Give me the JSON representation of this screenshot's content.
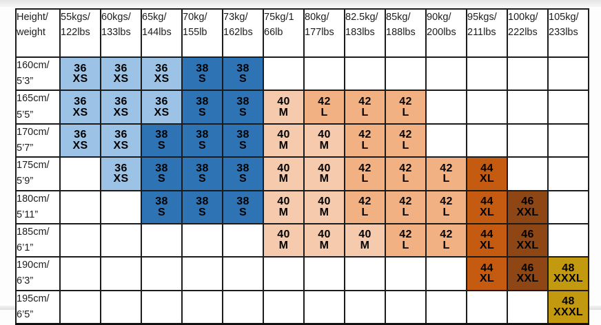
{
  "colors": {
    "xs": "#9CC2E5",
    "s": "#2E74B5",
    "m": "#F6CBAD",
    "l": "#F2B183",
    "xl": "#C55A11",
    "xxl": "#8E4615",
    "xxxl": "#C3990F",
    "grid_line": "#1b1b1b",
    "cell_text": "#000000"
  },
  "table": {
    "header": [
      {
        "line1": "Height/",
        "line2": "weight"
      },
      {
        "line1": "55kgs/",
        "line2": "122lbs"
      },
      {
        "line1": "60kgs/",
        "line2": "133lbs"
      },
      {
        "line1": "65kg/",
        "line2": "144lbs"
      },
      {
        "line1": "70kg/",
        "line2": "155lb"
      },
      {
        "line1": "73kg/",
        "line2": "162lbs"
      },
      {
        "line1": "75kg/1",
        "line2": "66lb"
      },
      {
        "line1": "80kg/",
        "line2": "177lbs"
      },
      {
        "line1": "82.5kg/",
        "line2": "183lbs"
      },
      {
        "line1": "85kg/",
        "line2": "188lbs"
      },
      {
        "line1": "90kg/",
        "line2": "200lbs"
      },
      {
        "line1": "95kgs/",
        "line2": "211lbs"
      },
      {
        "line1": "100kg/",
        "line2": "222lbs"
      },
      {
        "line1": "105kg/",
        "line2": "233lbs"
      }
    ],
    "rows": [
      {
        "label1": "160cm/",
        "label2": "5’3”",
        "cells": [
          {
            "num": "36",
            "code": "XS",
            "tone": "xs"
          },
          {
            "num": "36",
            "code": "XS",
            "tone": "xs"
          },
          {
            "num": "36",
            "code": "XS",
            "tone": "xs"
          },
          {
            "num": "38",
            "code": "S",
            "tone": "s"
          },
          {
            "num": "38",
            "code": "S",
            "tone": "s"
          },
          null,
          null,
          null,
          null,
          null,
          null,
          null,
          null
        ]
      },
      {
        "label1": "165cm/",
        "label2": "5’5”",
        "cells": [
          {
            "num": "36",
            "code": "XS",
            "tone": "xs"
          },
          {
            "num": "36",
            "code": "XS",
            "tone": "xs"
          },
          {
            "num": "36",
            "code": "XS",
            "tone": "xs"
          },
          {
            "num": "38",
            "code": "S",
            "tone": "s"
          },
          {
            "num": "38",
            "code": "S",
            "tone": "s"
          },
          {
            "num": "40",
            "code": "M",
            "tone": "m"
          },
          {
            "num": "42",
            "code": "L",
            "tone": "l"
          },
          {
            "num": "42",
            "code": "L",
            "tone": "l"
          },
          {
            "num": "42",
            "code": "L",
            "tone": "l"
          },
          null,
          null,
          null,
          null
        ]
      },
      {
        "label1": "170cm/",
        "label2": "5’7”",
        "cells": [
          {
            "num": "36",
            "code": "XS",
            "tone": "xs"
          },
          {
            "num": "36",
            "code": "XS",
            "tone": "xs"
          },
          {
            "num": "38",
            "code": "S",
            "tone": "s"
          },
          {
            "num": "38",
            "code": "S",
            "tone": "s"
          },
          {
            "num": "38",
            "code": "S",
            "tone": "s"
          },
          {
            "num": "40",
            "code": "M",
            "tone": "m"
          },
          {
            "num": "40",
            "code": "M",
            "tone": "m"
          },
          {
            "num": "42",
            "code": "L",
            "tone": "l"
          },
          {
            "num": "42",
            "code": "L",
            "tone": "l"
          },
          null,
          null,
          null,
          null
        ]
      },
      {
        "label1": "175cm/",
        "label2": "5’9”",
        "cells": [
          null,
          {
            "num": "36",
            "code": "XS",
            "tone": "xs"
          },
          {
            "num": "38",
            "code": "S",
            "tone": "s"
          },
          {
            "num": "38",
            "code": "S",
            "tone": "s"
          },
          {
            "num": "38",
            "code": "S",
            "tone": "s"
          },
          {
            "num": "40",
            "code": "M",
            "tone": "m"
          },
          {
            "num": "40",
            "code": "M",
            "tone": "m"
          },
          {
            "num": "42",
            "code": "L",
            "tone": "l"
          },
          {
            "num": "42",
            "code": "L",
            "tone": "l"
          },
          {
            "num": "42",
            "code": "L",
            "tone": "l"
          },
          {
            "num": "44",
            "code": "XL",
            "tone": "xl"
          },
          null,
          null
        ]
      },
      {
        "label1": "180cm/",
        "label2": "5’11”",
        "cells": [
          null,
          null,
          {
            "num": "38",
            "code": "S",
            "tone": "s"
          },
          {
            "num": "38",
            "code": "S",
            "tone": "s"
          },
          {
            "num": "38",
            "code": "S",
            "tone": "s"
          },
          {
            "num": "40",
            "code": "M",
            "tone": "m"
          },
          {
            "num": "40",
            "code": "M",
            "tone": "m"
          },
          {
            "num": "42",
            "code": "L",
            "tone": "l"
          },
          {
            "num": "42",
            "code": "L",
            "tone": "l"
          },
          {
            "num": "42",
            "code": "L",
            "tone": "l"
          },
          {
            "num": "44",
            "code": "XL",
            "tone": "xl"
          },
          {
            "num": "46",
            "code": "XXL",
            "tone": "xxl"
          },
          null
        ]
      },
      {
        "label1": "185cm/",
        "label2": "6’1”",
        "cells": [
          null,
          null,
          null,
          null,
          null,
          {
            "num": "40",
            "code": "M",
            "tone": "m"
          },
          {
            "num": "40",
            "code": "M",
            "tone": "m"
          },
          {
            "num": "40",
            "code": "M",
            "tone": "m"
          },
          {
            "num": "42",
            "code": "L",
            "tone": "l"
          },
          {
            "num": "42",
            "code": "L",
            "tone": "l"
          },
          {
            "num": "44",
            "code": "XL",
            "tone": "xl"
          },
          {
            "num": "46",
            "code": "XXL",
            "tone": "xxl"
          },
          null
        ]
      },
      {
        "label1": "190cm/",
        "label2": "6’3”",
        "cells": [
          null,
          null,
          null,
          null,
          null,
          null,
          null,
          null,
          null,
          null,
          {
            "num": "44",
            "code": "XL",
            "tone": "xl"
          },
          {
            "num": "46",
            "code": "XXL",
            "tone": "xxl"
          },
          {
            "num": "48",
            "code": "XXXL",
            "tone": "xxxl"
          }
        ]
      },
      {
        "label1": "195cm/",
        "label2": "6’5”",
        "cells": [
          null,
          null,
          null,
          null,
          null,
          null,
          null,
          null,
          null,
          null,
          null,
          null,
          {
            "num": "48",
            "code": "XXXL",
            "tone": "xxxl"
          }
        ]
      }
    ]
  },
  "chart_data": {
    "type": "table",
    "title": "",
    "columns": [
      "Height/weight",
      "55kgs/122lbs",
      "60kgs/133lbs",
      "65kg/144lbs",
      "70kg/155lb",
      "73kg/162lbs",
      "75kg/166lb",
      "80kg/177lbs",
      "82.5kg/183lbs",
      "85kg/188lbs",
      "90kg/200lbs",
      "95kgs/211lbs",
      "100kg/222lbs",
      "105kg/233lbs"
    ],
    "rows": [
      {
        "height": "160cm/5’3”",
        "sizes": [
          "36 XS",
          "36 XS",
          "36 XS",
          "38 S",
          "38 S",
          "",
          "",
          "",
          "",
          "",
          "",
          "",
          ""
        ]
      },
      {
        "height": "165cm/5’5”",
        "sizes": [
          "36 XS",
          "36 XS",
          "36 XS",
          "38 S",
          "38 S",
          "40 M",
          "42 L",
          "42 L",
          "42 L",
          "",
          "",
          "",
          ""
        ]
      },
      {
        "height": "170cm/5’7”",
        "sizes": [
          "36 XS",
          "36 XS",
          "38 S",
          "38 S",
          "38 S",
          "40 M",
          "40 M",
          "42 L",
          "42 L",
          "",
          "",
          "",
          ""
        ]
      },
      {
        "height": "175cm/5’9”",
        "sizes": [
          "",
          "36 XS",
          "38 S",
          "38 S",
          "38 S",
          "40 M",
          "40 M",
          "42 L",
          "42 L",
          "42 L",
          "44 XL",
          "",
          ""
        ]
      },
      {
        "height": "180cm/5’11”",
        "sizes": [
          "",
          "",
          "38 S",
          "38 S",
          "38 S",
          "40 M",
          "40 M",
          "42 L",
          "42 L",
          "42 L",
          "44 XL",
          "46 XXL",
          ""
        ]
      },
      {
        "height": "185cm/6’1”",
        "sizes": [
          "",
          "",
          "",
          "",
          "",
          "40 M",
          "40 M",
          "40 M",
          "42 L",
          "42 L",
          "44 XL",
          "46 XXL",
          ""
        ]
      },
      {
        "height": "190cm/6’3”",
        "sizes": [
          "",
          "",
          "",
          "",
          "",
          "",
          "",
          "",
          "",
          "",
          "44 XL",
          "46 XXL",
          "48 XXXL"
        ]
      },
      {
        "height": "195cm/6’5”",
        "sizes": [
          "",
          "",
          "",
          "",
          "",
          "",
          "",
          "",
          "",
          "",
          "",
          "",
          "48 XXXL"
        ]
      }
    ],
    "legend": [
      {
        "size": "36 XS",
        "color": "#9CC2E5"
      },
      {
        "size": "38 S",
        "color": "#2E74B5"
      },
      {
        "size": "40 M",
        "color": "#F6CBAD"
      },
      {
        "size": "42 L",
        "color": "#F2B183"
      },
      {
        "size": "44 XL",
        "color": "#C55A11"
      },
      {
        "size": "46 XXL",
        "color": "#8E4615"
      },
      {
        "size": "48 XXXL",
        "color": "#C3990F"
      }
    ]
  }
}
